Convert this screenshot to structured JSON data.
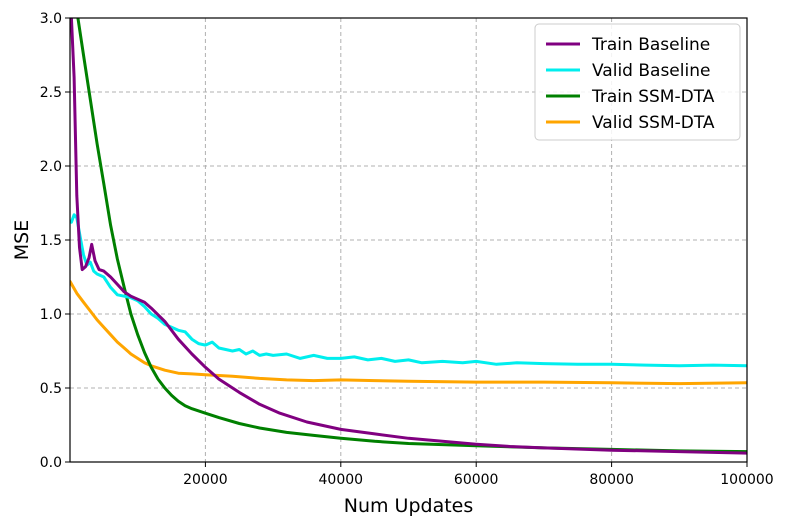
{
  "chart_data": {
    "type": "line",
    "xlabel": "Num Updates",
    "ylabel": "MSE",
    "xlim": [
      0,
      100000
    ],
    "ylim": [
      0,
      3.0
    ],
    "xticks": [
      20000,
      40000,
      60000,
      80000,
      100000
    ],
    "xtick_labels": [
      "20000",
      "40000",
      "60000",
      "80000",
      "100000"
    ],
    "yticks": [
      0.0,
      0.5,
      1.0,
      1.5,
      2.0,
      2.5,
      3.0
    ],
    "ytick_labels": [
      "0.0",
      "0.5",
      "1.0",
      "1.5",
      "2.0",
      "2.5",
      "3.0"
    ],
    "grid": true,
    "legend_position": "top-right",
    "series": [
      {
        "name": "Train Baseline",
        "color": "#800080",
        "points": [
          [
            200,
            3.0
          ],
          [
            600,
            2.6
          ],
          [
            1000,
            1.8
          ],
          [
            1400,
            1.45
          ],
          [
            1800,
            1.3
          ],
          [
            2300,
            1.32
          ],
          [
            2800,
            1.38
          ],
          [
            3200,
            1.47
          ],
          [
            3700,
            1.36
          ],
          [
            4300,
            1.3
          ],
          [
            5000,
            1.29
          ],
          [
            6000,
            1.25
          ],
          [
            7000,
            1.2
          ],
          [
            8000,
            1.15
          ],
          [
            9000,
            1.12
          ],
          [
            10000,
            1.1
          ],
          [
            11000,
            1.08
          ],
          [
            12000,
            1.04
          ],
          [
            14000,
            0.95
          ],
          [
            16000,
            0.83
          ],
          [
            18000,
            0.73
          ],
          [
            20000,
            0.64
          ],
          [
            22000,
            0.56
          ],
          [
            25000,
            0.47
          ],
          [
            28000,
            0.39
          ],
          [
            31000,
            0.33
          ],
          [
            35000,
            0.27
          ],
          [
            40000,
            0.22
          ],
          [
            45000,
            0.19
          ],
          [
            50000,
            0.16
          ],
          [
            55000,
            0.14
          ],
          [
            60000,
            0.12
          ],
          [
            65000,
            0.105
          ],
          [
            70000,
            0.095
          ],
          [
            80000,
            0.08
          ],
          [
            90000,
            0.07
          ],
          [
            100000,
            0.06
          ]
        ]
      },
      {
        "name": "Valid Baseline",
        "color": "#00eeee",
        "points": [
          [
            200,
            1.62
          ],
          [
            600,
            1.67
          ],
          [
            1000,
            1.65
          ],
          [
            1500,
            1.52
          ],
          [
            2000,
            1.4
          ],
          [
            2500,
            1.33
          ],
          [
            3000,
            1.35
          ],
          [
            3500,
            1.29
          ],
          [
            4000,
            1.27
          ],
          [
            5000,
            1.25
          ],
          [
            6000,
            1.18
          ],
          [
            7000,
            1.13
          ],
          [
            8000,
            1.12
          ],
          [
            9000,
            1.11
          ],
          [
            10000,
            1.09
          ],
          [
            11000,
            1.05
          ],
          [
            12000,
            1.0
          ],
          [
            13000,
            0.97
          ],
          [
            14000,
            0.93
          ],
          [
            15000,
            0.91
          ],
          [
            16000,
            0.89
          ],
          [
            17000,
            0.88
          ],
          [
            18000,
            0.83
          ],
          [
            19000,
            0.8
          ],
          [
            20000,
            0.79
          ],
          [
            21000,
            0.81
          ],
          [
            22000,
            0.77
          ],
          [
            23000,
            0.76
          ],
          [
            24000,
            0.75
          ],
          [
            25000,
            0.76
          ],
          [
            26000,
            0.73
          ],
          [
            27000,
            0.75
          ],
          [
            28000,
            0.72
          ],
          [
            29000,
            0.73
          ],
          [
            30000,
            0.72
          ],
          [
            32000,
            0.73
          ],
          [
            34000,
            0.7
          ],
          [
            36000,
            0.72
          ],
          [
            38000,
            0.7
          ],
          [
            40000,
            0.7
          ],
          [
            42000,
            0.71
          ],
          [
            44000,
            0.69
          ],
          [
            46000,
            0.7
          ],
          [
            48000,
            0.68
          ],
          [
            50000,
            0.69
          ],
          [
            52000,
            0.67
          ],
          [
            55000,
            0.68
          ],
          [
            58000,
            0.67
          ],
          [
            60000,
            0.68
          ],
          [
            63000,
            0.66
          ],
          [
            66000,
            0.67
          ],
          [
            70000,
            0.665
          ],
          [
            75000,
            0.66
          ],
          [
            80000,
            0.66
          ],
          [
            85000,
            0.655
          ],
          [
            90000,
            0.65
          ],
          [
            95000,
            0.655
          ],
          [
            100000,
            0.65
          ]
        ]
      },
      {
        "name": "Train SSM-DTA",
        "color": "#008000",
        "points": [
          [
            0,
            3.3
          ],
          [
            1000,
            3.05
          ],
          [
            2000,
            2.75
          ],
          [
            3000,
            2.45
          ],
          [
            4000,
            2.15
          ],
          [
            5000,
            1.88
          ],
          [
            6000,
            1.6
          ],
          [
            7000,
            1.37
          ],
          [
            8000,
            1.18
          ],
          [
            9000,
            1.0
          ],
          [
            10000,
            0.86
          ],
          [
            11000,
            0.74
          ],
          [
            12000,
            0.64
          ],
          [
            13000,
            0.56
          ],
          [
            14000,
            0.5
          ],
          [
            15000,
            0.45
          ],
          [
            16000,
            0.41
          ],
          [
            17000,
            0.38
          ],
          [
            18000,
            0.36
          ],
          [
            20000,
            0.33
          ],
          [
            22000,
            0.3
          ],
          [
            25000,
            0.26
          ],
          [
            28000,
            0.23
          ],
          [
            32000,
            0.2
          ],
          [
            36000,
            0.18
          ],
          [
            40000,
            0.16
          ],
          [
            45000,
            0.14
          ],
          [
            50000,
            0.125
          ],
          [
            60000,
            0.11
          ],
          [
            70000,
            0.095
          ],
          [
            80000,
            0.085
          ],
          [
            90000,
            0.075
          ],
          [
            100000,
            0.07
          ]
        ]
      },
      {
        "name": "Valid SSM-DTA",
        "color": "#ffa500",
        "points": [
          [
            0,
            1.22
          ],
          [
            1000,
            1.14
          ],
          [
            2000,
            1.08
          ],
          [
            3000,
            1.02
          ],
          [
            4000,
            0.96
          ],
          [
            5000,
            0.91
          ],
          [
            6000,
            0.86
          ],
          [
            7000,
            0.81
          ],
          [
            8000,
            0.77
          ],
          [
            9000,
            0.73
          ],
          [
            10000,
            0.7
          ],
          [
            11000,
            0.67
          ],
          [
            12000,
            0.65
          ],
          [
            14000,
            0.62
          ],
          [
            16000,
            0.6
          ],
          [
            18000,
            0.595
          ],
          [
            20000,
            0.59
          ],
          [
            24000,
            0.58
          ],
          [
            28000,
            0.565
          ],
          [
            32000,
            0.555
          ],
          [
            36000,
            0.55
          ],
          [
            40000,
            0.555
          ],
          [
            45000,
            0.55
          ],
          [
            50000,
            0.545
          ],
          [
            60000,
            0.54
          ],
          [
            70000,
            0.54
          ],
          [
            80000,
            0.535
          ],
          [
            90000,
            0.53
          ],
          [
            100000,
            0.535
          ]
        ]
      }
    ]
  }
}
